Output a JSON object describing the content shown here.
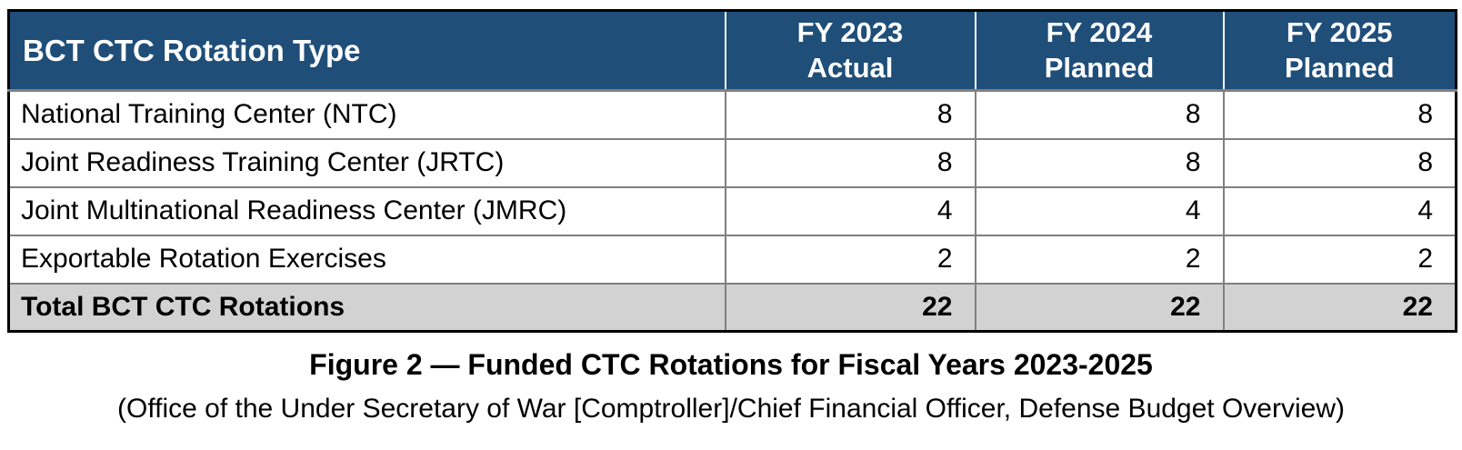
{
  "table": {
    "header": {
      "row_label": "BCT CTC Rotation Type",
      "columns": [
        {
          "fy": "FY 2023",
          "status": "Actual"
        },
        {
          "fy": "FY 2024",
          "status": "Planned"
        },
        {
          "fy": "FY 2025",
          "status": "Planned"
        }
      ]
    },
    "rows": [
      {
        "label": "National Training Center (NTC)",
        "values": [
          "8",
          "8",
          "8"
        ]
      },
      {
        "label": "Joint Readiness Training Center (JRTC)",
        "values": [
          "8",
          "8",
          "8"
        ]
      },
      {
        "label": "Joint Multinational Readiness Center (JMRC)",
        "values": [
          "4",
          "4",
          "4"
        ]
      },
      {
        "label": "Exportable Rotation Exercises",
        "values": [
          "2",
          "2",
          "2"
        ]
      }
    ],
    "total": {
      "label": "Total BCT CTC Rotations",
      "values": [
        "22",
        "22",
        "22"
      ]
    }
  },
  "caption": {
    "title": "Figure 2 — Funded CTC Rotations for Fiscal Years 2023-2025",
    "source": "(Office of the Under Secretary of War [Comptroller]/Chief Financial Officer, Defense Budget Overview)"
  },
  "colors": {
    "header_bg": "#1F4E79",
    "header_text": "#FFFFFF",
    "total_row_bg": "#D2D2D2",
    "grid_line": "#808080",
    "outer_border": "#000000"
  }
}
